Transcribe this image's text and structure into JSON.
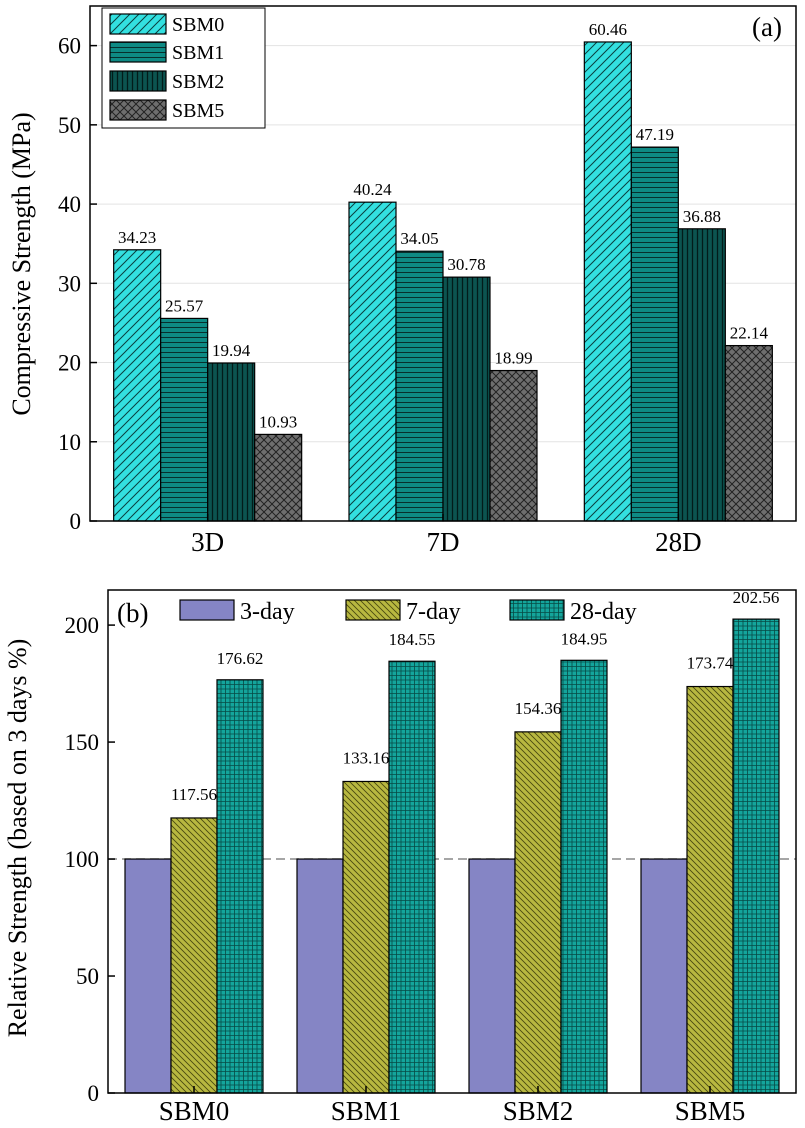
{
  "figure": {
    "chart_data": [
      {
        "type": "bar",
        "panel_label": "(a)",
        "title": "",
        "xlabel": "",
        "ylabel": "Compressive Strength (MPa)",
        "ylim": [
          0,
          65
        ],
        "yticks": [
          0,
          10,
          20,
          30,
          40,
          50,
          60
        ],
        "grid": "horizontal",
        "legend_position": "top-left",
        "categories": [
          "3D",
          "7D",
          "28D"
        ],
        "series": [
          {
            "name": "SBM0",
            "values": [
              34.23,
              40.24,
              60.46
            ],
            "value_labels": [
              "34.23",
              "40.24",
              "60.46"
            ],
            "color": "#33e0e0",
            "pattern": "diagonal-hatch"
          },
          {
            "name": "SBM1",
            "values": [
              25.57,
              34.05,
              47.19
            ],
            "value_labels": [
              "25.57",
              "34.05",
              "47.19"
            ],
            "color": "#0e8a84",
            "pattern": "horizontal-lines"
          },
          {
            "name": "SBM2",
            "values": [
              19.94,
              30.78,
              36.88
            ],
            "value_labels": [
              "19.94",
              "30.78",
              "36.88"
            ],
            "color": "#0c5450",
            "pattern": "vertical-lines"
          },
          {
            "name": "SBM5",
            "values": [
              10.93,
              18.99,
              22.14
            ],
            "value_labels": [
              "10.93",
              "18.99",
              "22.14"
            ],
            "color": "#6e6e6e",
            "pattern": "crosshatch"
          }
        ]
      },
      {
        "type": "bar",
        "panel_label": "(b)",
        "title": "",
        "xlabel": "",
        "ylabel": "Relative Strength (based on 3 days %)",
        "ylim": [
          0,
          215
        ],
        "yticks": [
          0,
          50,
          100,
          150,
          200
        ],
        "grid": "none",
        "reference_line": 100,
        "legend_position": "top",
        "categories": [
          "SBM0",
          "SBM1",
          "SBM2",
          "SBM5"
        ],
        "series": [
          {
            "name": "3-day",
            "values": [
              100,
              100,
              100,
              100
            ],
            "value_labels": [
              "",
              "",
              "",
              ""
            ],
            "color": "#8585c5",
            "pattern": "solid"
          },
          {
            "name": "7-day",
            "values": [
              117.56,
              133.16,
              154.36,
              173.74
            ],
            "value_labels": [
              "117.56",
              "133.16",
              "154.36",
              "173.74"
            ],
            "color": "#b8b840",
            "pattern": "diagonal-hatch"
          },
          {
            "name": "28-day",
            "values": [
              176.62,
              184.55,
              184.95,
              202.56
            ],
            "value_labels": [
              "176.62",
              "184.55",
              "184.95",
              "202.56"
            ],
            "color": "#14a59c",
            "pattern": "grid"
          }
        ]
      }
    ]
  }
}
